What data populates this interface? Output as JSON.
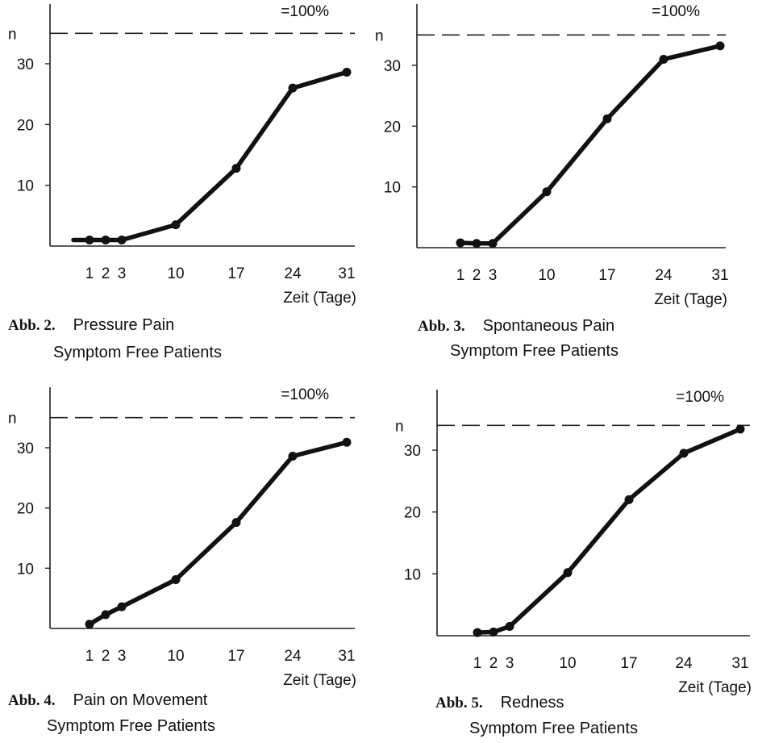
{
  "chart_data": [
    {
      "type": "line",
      "figure_label": "Abb. 2.",
      "title": "Pressure Pain",
      "subtitle": "Symptom Free Patients",
      "ylabel": "n",
      "xlabel": "Zeit (Tage)",
      "reference_label": "=100%",
      "reference_value": 35,
      "ylim": [
        0,
        40
      ],
      "yticks": [
        10,
        20,
        30
      ],
      "xticks": [
        1,
        2,
        3,
        10,
        17,
        24,
        31
      ],
      "x": [
        1,
        2,
        3,
        10,
        17,
        24,
        31
      ],
      "values": [
        1,
        1,
        1,
        3.5,
        12.8,
        26,
        28.6
      ]
    },
    {
      "type": "line",
      "figure_label": "Abb. 3.",
      "title": "Spontaneous Pain",
      "subtitle": "Symptom Free Patients",
      "ylabel": "n",
      "xlabel": "Zeit (Tage)",
      "reference_label": "=100%",
      "reference_value": 35,
      "ylim": [
        0,
        40
      ],
      "yticks": [
        10,
        20,
        30
      ],
      "xticks": [
        1,
        2,
        3,
        10,
        17,
        24,
        31
      ],
      "x": [
        1,
        2,
        3,
        10,
        17,
        24,
        31
      ],
      "values": [
        0.8,
        0.7,
        0.7,
        9.2,
        21.2,
        31,
        33.2
      ]
    },
    {
      "type": "line",
      "figure_label": "Abb. 4.",
      "title": "Pain on Movement",
      "subtitle": "Symptom Free Patients",
      "ylabel": "n",
      "xlabel": "Zeit (Tage)",
      "reference_label": "=100%",
      "reference_value": 35,
      "ylim": [
        0,
        40
      ],
      "yticks": [
        10,
        20,
        30
      ],
      "xticks": [
        1,
        2,
        3,
        10,
        17,
        24,
        31
      ],
      "x": [
        1,
        2,
        3,
        10,
        17,
        24,
        31
      ],
      "values": [
        0.7,
        2.3,
        3.6,
        8.1,
        17.6,
        28.6,
        30.9
      ]
    },
    {
      "type": "line",
      "figure_label": "Abb. 5.",
      "title": "Redness",
      "subtitle": "Symptom Free Patients",
      "ylabel": "n",
      "xlabel": "Zeit (Tage)",
      "reference_label": "=100%",
      "reference_value": 34,
      "ylim": [
        0,
        40
      ],
      "yticks": [
        10,
        20,
        30
      ],
      "xticks": [
        1,
        2,
        3,
        10,
        17,
        24,
        31
      ],
      "x": [
        1,
        2,
        3,
        10,
        17,
        24,
        31
      ],
      "values": [
        0.5,
        0.6,
        1.5,
        10.2,
        22,
        29.5,
        33.4
      ]
    }
  ]
}
